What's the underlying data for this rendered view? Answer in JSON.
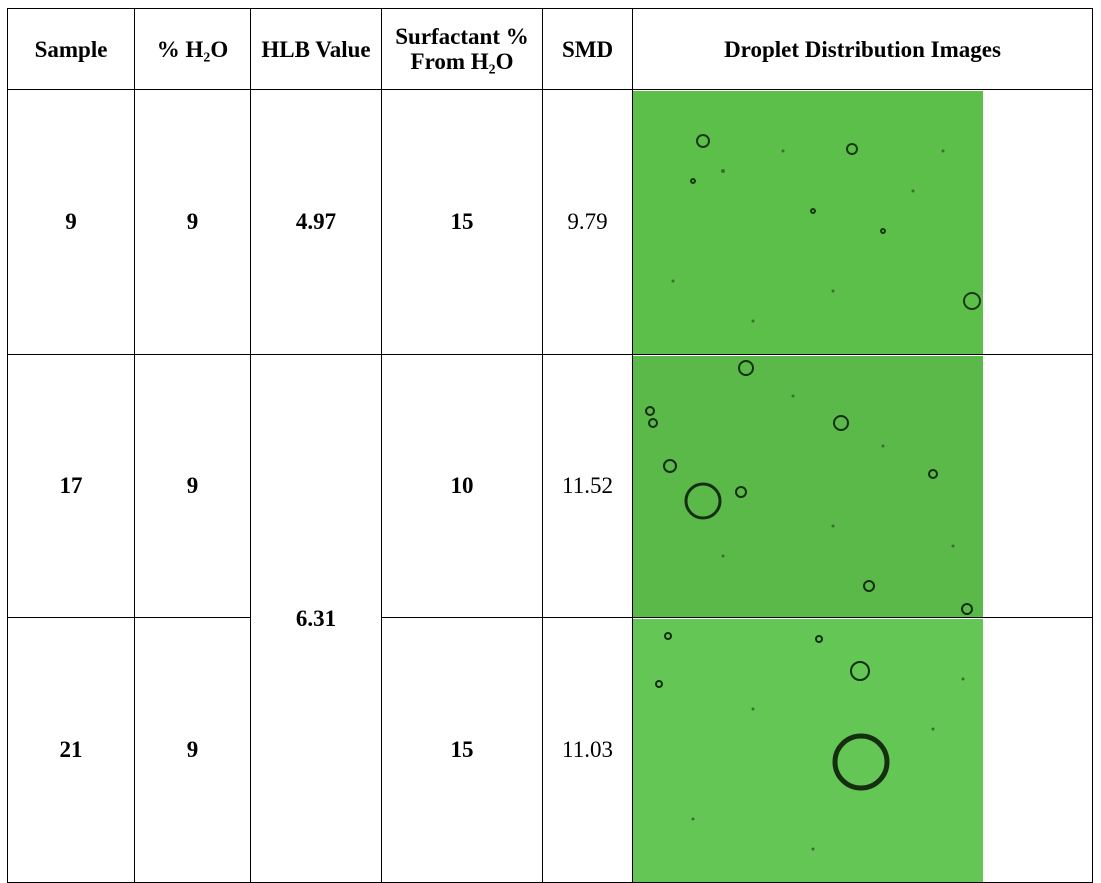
{
  "table": {
    "header": [
      "Sample",
      "% H₂O",
      "HLB Value",
      "Surfactant % From H₂O",
      "SMD",
      "Droplet Distribution Images"
    ],
    "rows": [
      {
        "sample": 9,
        "h2o": 9,
        "hlb": 4.97,
        "surfactant": 15,
        "smd": 9.79
      },
      {
        "sample": 17,
        "h2o": 9,
        "hlb": 6.31,
        "surfactant": 10,
        "smd": 11.52
      },
      {
        "sample": 21,
        "h2o": 9,
        "surfactant": 15,
        "smd": 11.03
      }
    ]
  }
}
